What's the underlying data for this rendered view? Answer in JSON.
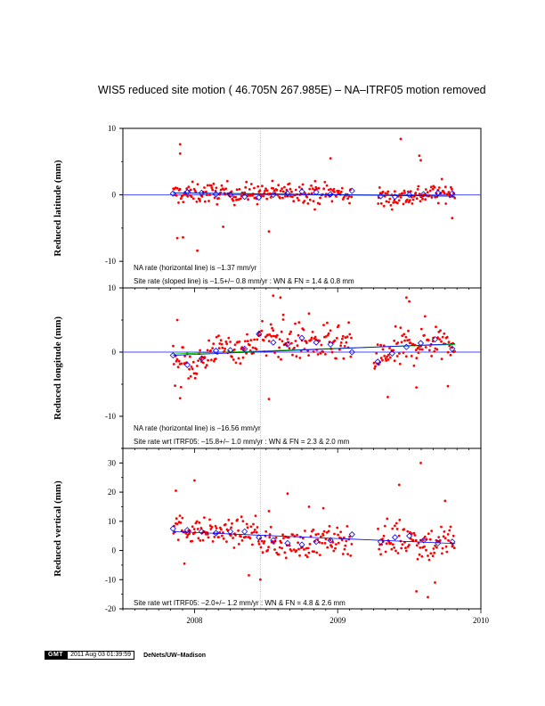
{
  "title": "WIS5 reduced site motion ( 46.705N 267.985E) – NA–ITRF05 motion removed",
  "footer": {
    "logo": "GMT",
    "timestamp": "2011 Aug 03 01:39:59",
    "credit": "DeNets/UW–Madison"
  },
  "colors": {
    "points": "#ff0000",
    "means": "#0000ff",
    "flat_line": "#4a4aff",
    "green_line": "#00cc00",
    "frame": "#000000",
    "marker_line": "#888888"
  },
  "chart_data": [
    {
      "type": "scatter",
      "panel": "latitude",
      "ylabel": "Reduced latitude (mm)",
      "xlim": [
        2007.5,
        2010.0
      ],
      "ylim": [
        -14,
        10
      ],
      "yticks": [
        -10,
        0,
        10
      ],
      "xticks": [],
      "marker_date": 2008.46,
      "notes": [
        "NA rate (horizontal line) is –1.37 mm/yr",
        "Site rate (sloped line) is  –1.5+/– 0.8 mm/yr : WN & FN =   1.4 &   0.8 mm"
      ],
      "flat_line": 0,
      "trend": {
        "x": [
          2007.85,
          2009.82
        ],
        "y": [
          0.3,
          -0.2
        ]
      },
      "green": {
        "x": [
          2007.85,
          2009.82
        ],
        "y": [
          0.3,
          -0.2
        ]
      },
      "clusters": [
        {
          "x": [
            2007.85,
            2009.1
          ],
          "center": [
            0.1,
            0.3,
            0.2,
            0.5,
            0.0
          ],
          "spread": 1.6
        },
        {
          "x": [
            2009.28,
            2009.82
          ],
          "center": [
            -0.6,
            -0.3,
            0.2,
            0.4
          ],
          "spread": 1.6
        }
      ],
      "outliers": [
        [
          2007.9,
          7.6
        ],
        [
          2007.9,
          6.2
        ],
        [
          2007.88,
          -6.5
        ],
        [
          2007.92,
          -6.4
        ],
        [
          2008.02,
          -8.4
        ],
        [
          2008.52,
          -5.5
        ],
        [
          2008.95,
          5.5
        ],
        [
          2009.44,
          8.4
        ],
        [
          2009.57,
          5.9
        ],
        [
          2009.58,
          5.2
        ],
        [
          2009.8,
          -3.5
        ],
        [
          2008.2,
          -4.8
        ],
        [
          2008.84,
          -2.2
        ]
      ],
      "means": {
        "x": [
          2007.85,
          2007.95,
          2008.05,
          2008.15,
          2008.25,
          2008.35,
          2008.45,
          2008.55,
          2008.65,
          2008.75,
          2008.85,
          2008.95,
          2009.1,
          2009.3,
          2009.4,
          2009.5,
          2009.6,
          2009.7,
          2009.8
        ],
        "y": [
          0.2,
          0.4,
          0.3,
          0.1,
          0.0,
          -0.3,
          -0.4,
          0.0,
          0.2,
          0.5,
          0.4,
          0.1,
          0.6,
          -0.2,
          -0.3,
          0.0,
          0.1,
          0.3,
          0.2
        ]
      }
    },
    {
      "type": "scatter",
      "panel": "longitude",
      "ylabel": "Reduced longitude (mm)",
      "xlim": [
        2007.5,
        2010.0
      ],
      "ylim": [
        -15,
        10
      ],
      "yticks": [
        -10,
        0,
        10
      ],
      "xticks": [],
      "marker_date": 2008.46,
      "notes": [
        "NA rate (horizontal line) is –16.56 mm/yr",
        "Site rate wrt ITRF05:  –15.8+/– 1.0 mm/yr : WN & FN =   2.3 &   2.0 mm"
      ],
      "flat_line": 0,
      "trend": {
        "x": [
          2007.85,
          2009.82
        ],
        "y": [
          -0.5,
          1.3
        ]
      },
      "green": {
        "x": [
          2007.85,
          2009.82
        ],
        "y": [
          -0.3,
          1.2
        ]
      },
      "clusters": [
        {
          "x": [
            2007.85,
            2008.1
          ],
          "center": [
            -1.5,
            -2.0,
            -1.0
          ],
          "spread": 3.0
        },
        {
          "x": [
            2008.1,
            2008.4
          ],
          "center": [
            0.5,
            0.5,
            0.8
          ],
          "spread": 2.3
        },
        {
          "x": [
            2008.4,
            2009.1
          ],
          "center": [
            2.0,
            1.8,
            1.2,
            1.0
          ],
          "spread": 3.0
        },
        {
          "x": [
            2009.25,
            2009.82
          ],
          "center": [
            -1.5,
            0.5,
            1.8,
            2.0
          ],
          "spread": 3.2
        }
      ],
      "outliers": [
        [
          2007.88,
          5.0
        ],
        [
          2007.9,
          -7.2
        ],
        [
          2008.55,
          8.8
        ],
        [
          2008.6,
          8.5
        ],
        [
          2008.52,
          -7.3
        ],
        [
          2008.62,
          5.8
        ],
        [
          2009.48,
          8.5
        ],
        [
          2009.5,
          7.9
        ],
        [
          2009.77,
          -5.3
        ],
        [
          2009.55,
          -5.5
        ],
        [
          2008.8,
          6.0
        ],
        [
          2009.35,
          -7.0
        ]
      ],
      "means": {
        "x": [
          2007.85,
          2007.95,
          2008.05,
          2008.15,
          2008.25,
          2008.35,
          2008.45,
          2008.55,
          2008.65,
          2008.75,
          2008.85,
          2008.95,
          2009.1,
          2009.28,
          2009.38,
          2009.48,
          2009.58,
          2009.68,
          2009.8
        ],
        "y": [
          -0.5,
          -2.0,
          -1.0,
          0.2,
          0.3,
          0.5,
          2.8,
          1.5,
          1.2,
          2.2,
          1.5,
          1.2,
          0.0,
          -1.5,
          -0.2,
          0.8,
          1.4,
          2.0,
          0.5
        ]
      }
    },
    {
      "type": "scatter",
      "panel": "vertical",
      "ylabel": "Reduced vertical (mm)",
      "xlim": [
        2007.5,
        2010.0
      ],
      "ylim": [
        -20,
        35
      ],
      "yticks": [
        -20,
        -10,
        0,
        10,
        20,
        30
      ],
      "xticks": [
        2008,
        2009,
        2010
      ],
      "marker_date": 2008.46,
      "notes": [
        "Site rate wrt ITRF05:  –2.0+/– 1.2 mm/yr : WN & FN =   4.8 &   2.6 mm"
      ],
      "flat_line": null,
      "trend": {
        "x": [
          2007.85,
          2009.82
        ],
        "y": [
          6.5,
          2.4
        ]
      },
      "green": null,
      "clusters": [
        {
          "x": [
            2007.85,
            2008.45
          ],
          "center": [
            8.0,
            6.5,
            6.0,
            6.5
          ],
          "spread": 4.5
        },
        {
          "x": [
            2008.45,
            2009.1
          ],
          "center": [
            3.0,
            2.0,
            3.0,
            4.0
          ],
          "spread": 5.0
        },
        {
          "x": [
            2009.28,
            2009.82
          ],
          "center": [
            3.0,
            5.0,
            2.0,
            3.5
          ],
          "spread": 6.5
        }
      ],
      "outliers": [
        [
          2007.87,
          20.5
        ],
        [
          2008.0,
          24.0
        ],
        [
          2007.93,
          -4.5
        ],
        [
          2008.38,
          -8.5
        ],
        [
          2008.46,
          -10.0
        ],
        [
          2008.65,
          19.5
        ],
        [
          2008.8,
          15.0
        ],
        [
          2008.9,
          14.5
        ],
        [
          2009.43,
          22.5
        ],
        [
          2009.58,
          30.0
        ],
        [
          2009.55,
          -14.0
        ],
        [
          2009.63,
          -16.0
        ],
        [
          2009.68,
          -11.0
        ],
        [
          2009.75,
          17.0
        ],
        [
          2008.52,
          13.5
        ]
      ],
      "means": {
        "x": [
          2007.85,
          2007.95,
          2008.05,
          2008.15,
          2008.25,
          2008.35,
          2008.45,
          2008.55,
          2008.65,
          2008.75,
          2008.85,
          2008.95,
          2009.1,
          2009.3,
          2009.4,
          2009.5,
          2009.6,
          2009.7,
          2009.8
        ],
        "y": [
          7.5,
          7.0,
          6.5,
          6.0,
          6.5,
          6.5,
          4.5,
          3.5,
          2.5,
          2.0,
          3.0,
          3.5,
          5.5,
          3.0,
          4.5,
          5.0,
          3.5,
          2.5,
          3.0
        ]
      }
    }
  ]
}
